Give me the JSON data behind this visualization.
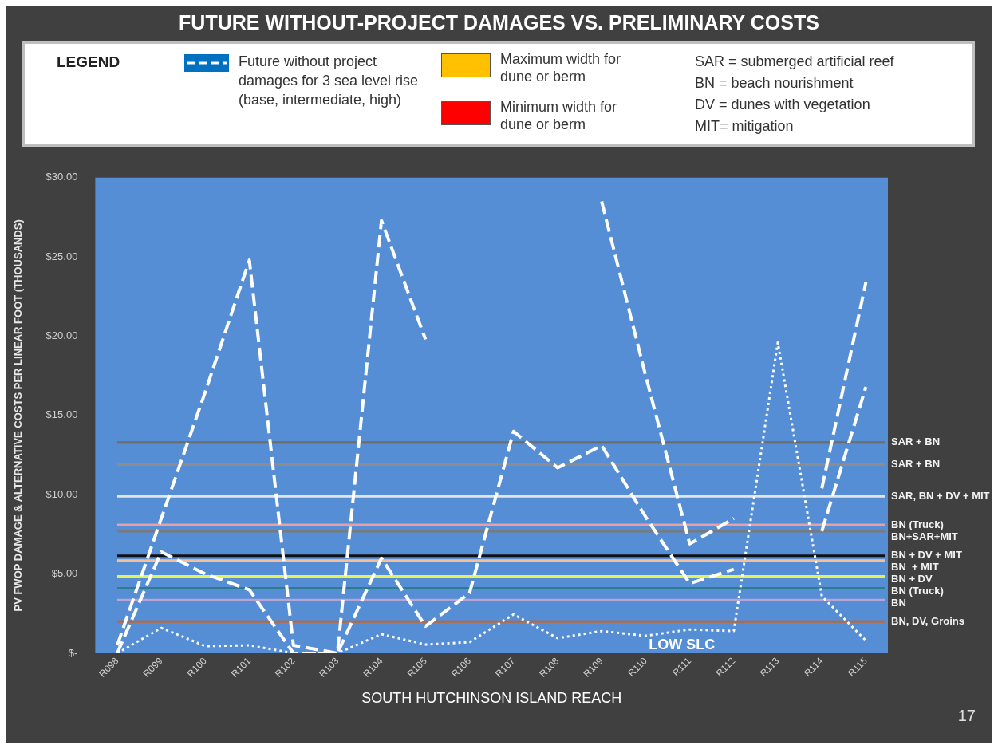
{
  "chart_data": {
    "type": "line",
    "title": "FUTURE WITHOUT-PROJECT DAMAGES VS. PRELIMINARY COSTS",
    "legend_title": "LEGEND",
    "legend": "top",
    "xlabel": "SOUTH HUTCHINSON ISLAND REACH",
    "ylabel": "PV FWOP DAMAGE & ALTERNATIVE COSTS PER LINEAR FOOT (THOUSANDS)",
    "categories": [
      "R098",
      "R099",
      "R100",
      "R101",
      "R102",
      "R103",
      "R104",
      "R105",
      "R106",
      "R107",
      "R108",
      "R109",
      "R110",
      "R111",
      "R112",
      "R113",
      "R114",
      "R115"
    ],
    "series": [
      {
        "name": "Future without project damages for 3 sea level rise (base, intermediate, high)",
        "color": "#ffffff",
        "line_style": "dashed",
        "values": [
          0.5,
          8.5,
          16.5,
          24.8,
          0.5,
          0,
          27.3,
          19.8,
          null,
          null,
          null,
          28.5,
          17.5,
          6.9,
          8.5,
          null,
          10.4,
          23.4
        ]
      },
      {
        "color": "#ffffff",
        "line_style": "dashed",
        "values": [
          0,
          6.4,
          5.0,
          4.0,
          0,
          0,
          6.0,
          1.7,
          3.8,
          14.0,
          11.7,
          13.1,
          8.6,
          4.4,
          5.3,
          null,
          7.7,
          16.8
        ]
      },
      {
        "color": "#ffffff",
        "line_style": "dotted",
        "values": [
          0,
          1.6,
          0.45,
          0.5,
          0,
          0,
          1.2,
          0.55,
          0.7,
          2.45,
          0.95,
          1.4,
          1.1,
          1.5,
          1.4,
          19.6,
          3.6,
          0.8
        ]
      }
    ],
    "ylim": [
      0,
      30
    ],
    "yticks": [
      {
        "value": 0,
        "label": "$-"
      },
      {
        "value": 5,
        "label": "$5.00"
      },
      {
        "value": 10,
        "label": "$10.00"
      },
      {
        "value": 15,
        "label": "$15.00"
      },
      {
        "value": 20,
        "label": "$20.00"
      },
      {
        "value": 25,
        "label": "$25.00"
      },
      {
        "value": 30,
        "label": "$30.00"
      }
    ],
    "grid": false,
    "marker": "none",
    "ref_lines": [
      {
        "axis": "y",
        "value": 13.3,
        "label": "SAR + BN",
        "color": "#6b6b6b"
      },
      {
        "axis": "y",
        "value": 11.9,
        "label": "SAR + BN",
        "color": "#8c8c8c"
      },
      {
        "axis": "y",
        "value": 9.9,
        "label": "SAR, BN + DV + MIT",
        "color": "#e4e4e4"
      },
      {
        "axis": "y",
        "value": 8.1,
        "label": "BN (Truck)",
        "color": "#e8a0a0"
      },
      {
        "axis": "y",
        "value": 7.7,
        "label": "BN+SAR+MIT",
        "color": "#7a7a7a"
      },
      {
        "axis": "y",
        "value": 6.15,
        "label": "BN + DV + MIT",
        "color": "#111111"
      },
      {
        "axis": "y",
        "value": 5.85,
        "label": "BN  + MIT",
        "color": "#f4c09a"
      },
      {
        "axis": "y",
        "value": 4.85,
        "label": "BN + DV",
        "color": "#e6f05a"
      },
      {
        "axis": "y",
        "value": 4.1,
        "label": "BN (Truck)",
        "color": "#2e7d8c"
      },
      {
        "axis": "y",
        "value": 3.35,
        "label": "BN",
        "color": "#b9a4d8"
      },
      {
        "axis": "y",
        "value": 2.0,
        "label": "BN, DV, Groins",
        "color": "#c8642a"
      }
    ],
    "annotations": [
      "Maximum width for dune or berm",
      "Minimum width for dune or berm",
      "SAR = submerged artificial reef",
      "BN = beach nourishment",
      "DV = dunes with vegetation",
      "MIT= mitigation",
      "LOW SLC",
      "17"
    ]
  }
}
